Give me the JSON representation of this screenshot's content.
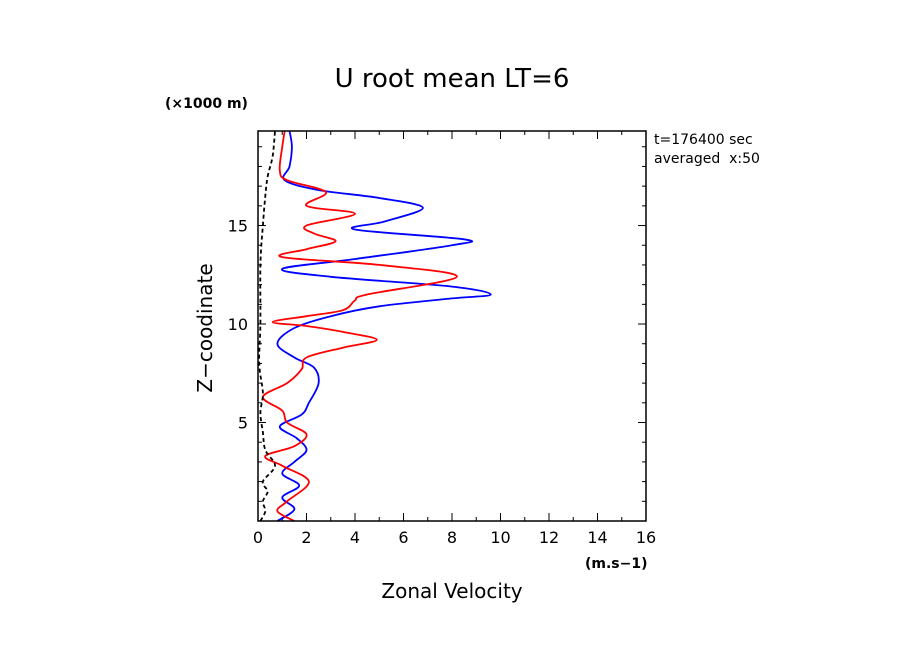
{
  "chart_data": {
    "type": "line",
    "title": "U root mean LT=6",
    "xlabel": "Zonal Velocity",
    "ylabel": "Z−coodinate",
    "x_unit": "(m.s−1)",
    "y_unit": "(×1000 m)",
    "xlim": [
      0,
      16
    ],
    "ylim": [
      0,
      19.8
    ],
    "x_ticks": [
      0,
      2,
      4,
      6,
      8,
      10,
      12,
      14,
      16
    ],
    "y_ticks": [
      5,
      10,
      15
    ],
    "annotations": [
      "t=176400 sec",
      "averaged  x:50"
    ],
    "grid": false,
    "series": [
      {
        "color": "#0000ff",
        "style": "solid",
        "points": [
          [
            0.8,
            0
          ],
          [
            1.5,
            0.6
          ],
          [
            1.0,
            1.2
          ],
          [
            1.7,
            1.8
          ],
          [
            1.0,
            2.4
          ],
          [
            1.5,
            3.0
          ],
          [
            2.0,
            3.6
          ],
          [
            1.6,
            4.2
          ],
          [
            0.9,
            4.8
          ],
          [
            1.8,
            5.4
          ],
          [
            2.1,
            6.0
          ],
          [
            2.5,
            7.0
          ],
          [
            2.3,
            7.8
          ],
          [
            1.5,
            8.3
          ],
          [
            0.8,
            9.0
          ],
          [
            1.5,
            9.8
          ],
          [
            3.0,
            10.4
          ],
          [
            5.0,
            10.9
          ],
          [
            8.0,
            11.3
          ],
          [
            9.6,
            11.5
          ],
          [
            8.0,
            11.9
          ],
          [
            3.0,
            12.4
          ],
          [
            1.0,
            12.8
          ],
          [
            4.0,
            13.3
          ],
          [
            8.0,
            14.0
          ],
          [
            8.5,
            14.3
          ],
          [
            4.0,
            14.8
          ],
          [
            5.2,
            15.2
          ],
          [
            6.8,
            15.9
          ],
          [
            5.0,
            16.4
          ],
          [
            2.5,
            16.8
          ],
          [
            1.1,
            17.3
          ],
          [
            1.3,
            18.0
          ],
          [
            1.4,
            19.0
          ],
          [
            1.3,
            19.8
          ]
        ]
      },
      {
        "color": "#ff0000",
        "style": "solid",
        "points": [
          [
            1.5,
            0
          ],
          [
            0.8,
            0.5
          ],
          [
            1.2,
            1.0
          ],
          [
            2.1,
            2.0
          ],
          [
            1.0,
            2.8
          ],
          [
            0.3,
            3.3
          ],
          [
            1.5,
            3.8
          ],
          [
            2.0,
            4.4
          ],
          [
            1.2,
            5.0
          ],
          [
            1.0,
            5.6
          ],
          [
            0.2,
            6.3
          ],
          [
            1.2,
            7.0
          ],
          [
            1.8,
            7.7
          ],
          [
            2.0,
            8.3
          ],
          [
            3.5,
            8.8
          ],
          [
            4.9,
            9.2
          ],
          [
            3.5,
            9.6
          ],
          [
            2.0,
            9.9
          ],
          [
            0.6,
            10.1
          ],
          [
            2.0,
            10.4
          ],
          [
            3.5,
            10.7
          ],
          [
            4.0,
            11.2
          ],
          [
            4.5,
            11.5
          ],
          [
            8.2,
            12.4
          ],
          [
            5.0,
            13.0
          ],
          [
            1.0,
            13.4
          ],
          [
            2.0,
            13.8
          ],
          [
            3.2,
            14.2
          ],
          [
            2.3,
            14.6
          ],
          [
            2.0,
            15.0
          ],
          [
            4.0,
            15.6
          ],
          [
            2.0,
            16.0
          ],
          [
            2.8,
            16.7
          ],
          [
            1.2,
            17.3
          ],
          [
            0.9,
            17.8
          ],
          [
            1.0,
            19.0
          ],
          [
            1.1,
            19.8
          ]
        ]
      },
      {
        "color": "#000000",
        "style": "dashed",
        "points": [
          [
            0.1,
            0
          ],
          [
            0.3,
            0.5
          ],
          [
            0.2,
            1.0
          ],
          [
            0.4,
            1.5
          ],
          [
            0.2,
            2.0
          ],
          [
            0.7,
            2.8
          ],
          [
            0.3,
            3.6
          ],
          [
            0.2,
            4.5
          ],
          [
            0.1,
            5.5
          ],
          [
            0.2,
            6.5
          ],
          [
            0.05,
            8.0
          ],
          [
            0.1,
            10.0
          ],
          [
            0.1,
            13.0
          ],
          [
            0.2,
            15.0
          ],
          [
            0.3,
            16.5
          ],
          [
            0.4,
            17.5
          ],
          [
            0.6,
            18.5
          ],
          [
            0.7,
            19.8
          ]
        ]
      }
    ]
  }
}
